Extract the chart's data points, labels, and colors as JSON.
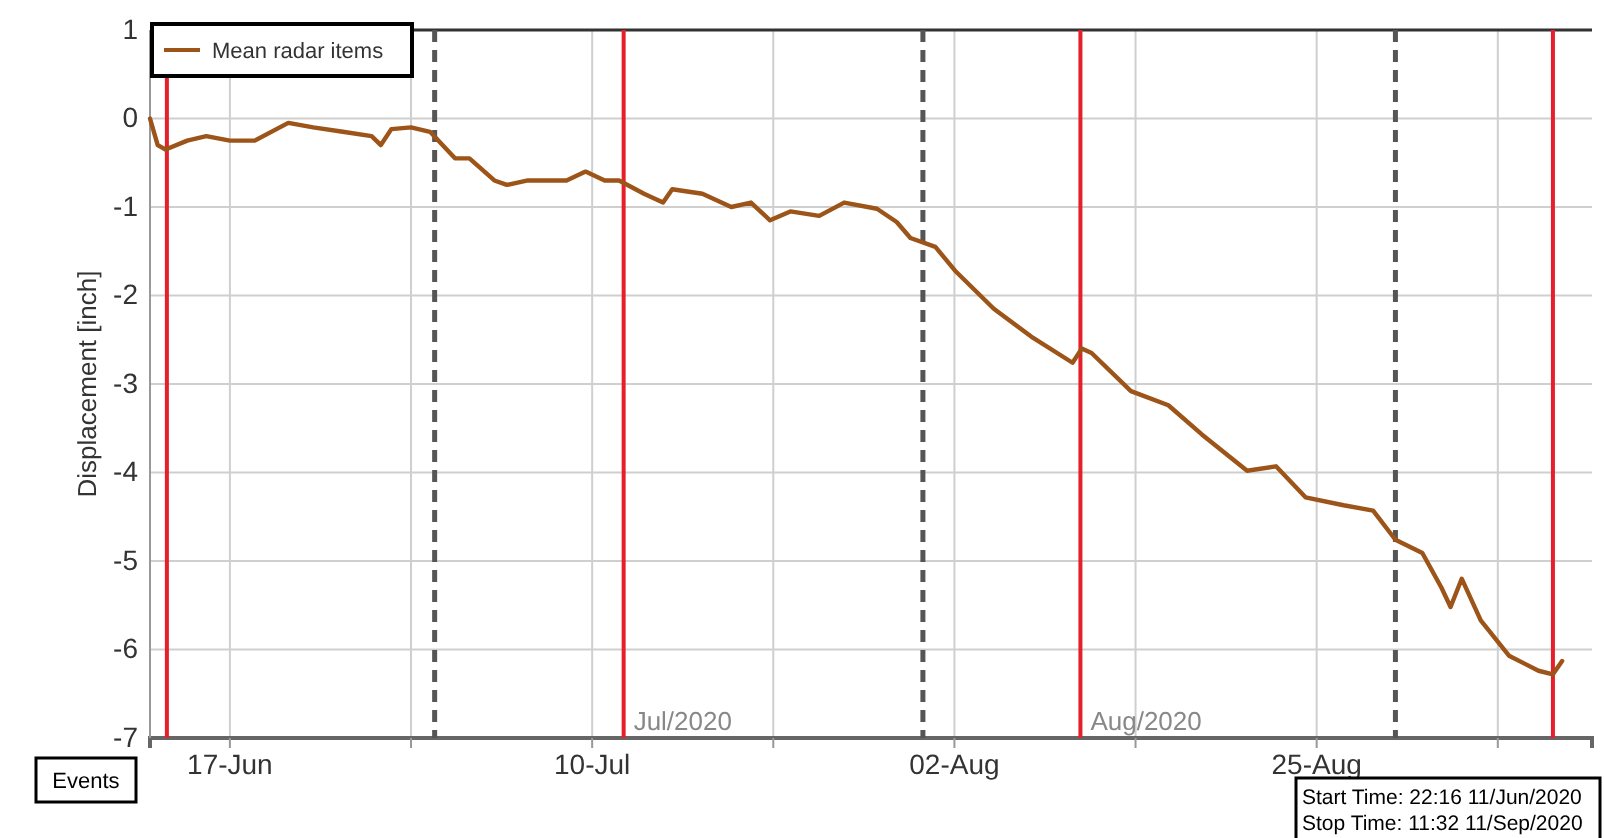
{
  "chart_data": {
    "type": "line",
    "ylabel": "Displacement [inch]",
    "x": [
      "2020-06-11T22:16",
      "2020-06-12T10:00",
      "2020-06-12T22:00",
      "2020-06-14T07:00",
      "2020-06-15T12:00",
      "2020-06-17",
      "2020-06-18T14:00",
      "2020-06-20T17:00",
      "2020-06-22T07:00",
      "2020-06-24T04:00",
      "2020-06-26",
      "2020-06-26T14:00",
      "2020-06-27T06:00",
      "2020-06-28T12:00",
      "2020-06-29T17:00",
      "2020-07-01T07:00",
      "2020-07-02T05:00",
      "2020-07-03T19:00",
      "2020-07-04T14:00",
      "2020-07-05T22:00",
      "2020-07-08T09:00",
      "2020-07-09T14:00",
      "2020-07-10T19:00",
      "2020-07-11T17:00",
      "2020-07-13T07:00",
      "2020-07-14T12:00",
      "2020-07-15T02:00",
      "2020-07-17",
      "2020-07-18T20:00",
      "2020-07-20T02:00",
      "2020-07-21T07:00",
      "2020-07-22T14:00",
      "2020-07-24T10:00",
      "2020-07-26",
      "2020-07-28T02:00",
      "2020-07-29T08:00",
      "2020-07-30T05:00",
      "2020-07-31T19:00",
      "2020-08-02T01:00",
      "2020-08-04T12:00",
      "2020-08-07",
      "2020-08-09T12:00",
      "2020-08-10T02:00",
      "2020-08-10T17:00",
      "2020-08-13T05:00",
      "2020-08-15T14:00",
      "2020-08-17T17:00",
      "2020-08-20T14:00",
      "2020-08-22T10:00",
      "2020-08-24T07:00",
      "2020-08-26T17:00",
      "2020-08-28T14:00",
      "2020-08-30",
      "2020-08-31T17:00",
      "2020-09-01T22:00",
      "2020-09-02T12:00",
      "2020-09-03T05:00",
      "2020-09-04T10:00",
      "2020-09-06T05:00",
      "2020-09-08T02:00",
      "2020-09-09",
      "2020-09-09T14:00"
    ],
    "series": [
      {
        "name": "Mean radar items",
        "color": "#9c5418",
        "values": [
          0.0,
          -0.3,
          -0.35,
          -0.25,
          -0.2,
          -0.25,
          -0.25,
          -0.05,
          -0.1,
          -0.15,
          -0.2,
          -0.3,
          -0.12,
          -0.1,
          -0.15,
          -0.45,
          -0.45,
          -0.7,
          -0.75,
          -0.7,
          -0.7,
          -0.6,
          -0.7,
          -0.7,
          -0.85,
          -0.95,
          -0.8,
          -0.85,
          -1.0,
          -0.95,
          -1.15,
          -1.05,
          -1.1,
          -0.95,
          -1.02,
          -1.17,
          -1.35,
          -1.45,
          -1.72,
          -2.15,
          -2.48,
          -2.76,
          -2.6,
          -2.65,
          -3.08,
          -3.24,
          -3.57,
          -3.98,
          -3.93,
          -4.28,
          -4.37,
          -4.43,
          -4.76,
          -4.91,
          -5.3,
          -5.52,
          -5.2,
          -5.67,
          -6.07,
          -6.24,
          -6.28,
          -6.13
        ]
      }
    ],
    "xlim": [
      "2020-06-11T22:16",
      "2020-09-11T11:32"
    ],
    "xticks": [
      {
        "value": "2020-06-17",
        "label": "17-Jun"
      },
      {
        "value": "2020-06-28T12:00",
        "label": null
      },
      {
        "value": "2020-07-10",
        "label": "10-Jul"
      },
      {
        "value": "2020-07-21T12:00",
        "label": null
      },
      {
        "value": "2020-08-02",
        "label": "02-Aug"
      },
      {
        "value": "2020-08-13T12:00",
        "label": null
      },
      {
        "value": "2020-08-25",
        "label": "25-Aug"
      },
      {
        "value": "2020-09-05T12:00",
        "label": null
      }
    ],
    "ylim": [
      -7,
      1
    ],
    "yticks": [
      -7,
      -6,
      -5,
      -4,
      -3,
      -2,
      -1,
      0,
      1
    ],
    "grid": true,
    "legend": "top left",
    "line_style": "solid",
    "marker": "none",
    "ref_lines": [
      {
        "axis": "x",
        "value": "2020-06-13",
        "color": "#e5202a",
        "line_style": "solid"
      },
      {
        "axis": "x",
        "value": "2020-06-30",
        "color": "#555555",
        "line_style": "dashed"
      },
      {
        "axis": "x",
        "value": "2020-07-12",
        "label": "Jul/2020",
        "color": "#e5202a",
        "line_style": "solid"
      },
      {
        "axis": "x",
        "value": "2020-07-31",
        "color": "#555555",
        "line_style": "dashed"
      },
      {
        "axis": "x",
        "value": "2020-08-10",
        "label": "Aug/2020",
        "color": "#e5202a",
        "line_style": "solid"
      },
      {
        "axis": "x",
        "value": "2020-08-30",
        "color": "#555555",
        "line_style": "dashed"
      },
      {
        "axis": "x",
        "value": "2020-09-09",
        "color": "#e5202a",
        "line_style": "solid"
      }
    ],
    "annotations": [
      "Events",
      "Start Time: 22:16 11/Jun/2020",
      "Stop Time: 11:32 11/Sep/2020"
    ]
  }
}
